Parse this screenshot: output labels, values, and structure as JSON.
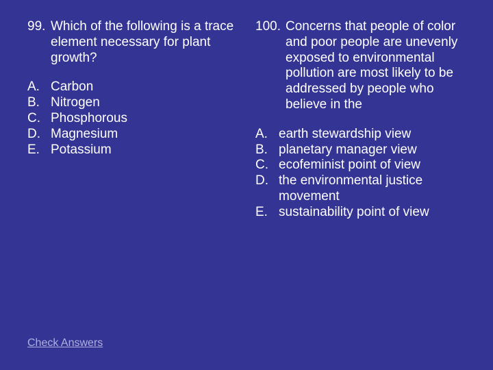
{
  "background_color": "#333493",
  "text_color": "#ffffff",
  "link_color": "#b0b0e0",
  "font_size": 19,
  "left": {
    "number": "99.",
    "text": "Which of the following is a trace element necessary for plant growth?",
    "options": [
      {
        "label": "A.",
        "text": "Carbon"
      },
      {
        "label": "B.",
        "text": "Nitrogen"
      },
      {
        "label": "C.",
        "text": "Phosphorous"
      },
      {
        "label": "D.",
        "text": "Magnesium"
      },
      {
        "label": "E.",
        "text": "Potassium"
      }
    ]
  },
  "right": {
    "number": "100.",
    "text": "Concerns that people of color and poor people are unevenly exposed to environmental pollution are most likely to be addressed by people who believe in the",
    "options": [
      {
        "label": "A.",
        "text": "earth stewardship view"
      },
      {
        "label": "B.",
        "text": "planetary manager view"
      },
      {
        "label": "C.",
        "text": "ecofeminist point of view"
      },
      {
        "label": "D.",
        "text": "the environmental justice movement"
      },
      {
        "label": "E.",
        "text": "sustainability point of view"
      }
    ]
  },
  "check_link": "Check Answers"
}
